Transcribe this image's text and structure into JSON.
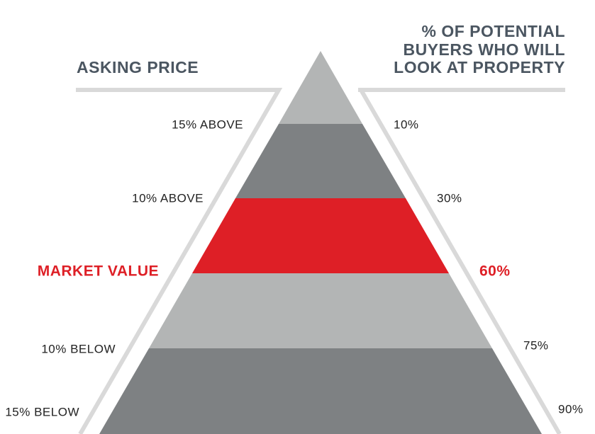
{
  "header": {
    "asking_price": "ASKING PRICE",
    "buyers": [
      "% OF POTENTIAL",
      "BUYERS WHO WILL",
      "LOOK AT PROPERTY"
    ]
  },
  "levels": [
    {
      "asking": "15% ABOVE",
      "buyers": "10%"
    },
    {
      "asking": "10% ABOVE",
      "buyers": "30%"
    },
    {
      "asking": "MARKET VALUE",
      "buyers": "60%"
    },
    {
      "asking": "10% BELOW",
      "buyers": "75%"
    },
    {
      "asking": "15% BELOW",
      "buyers": "90%"
    }
  ]
}
